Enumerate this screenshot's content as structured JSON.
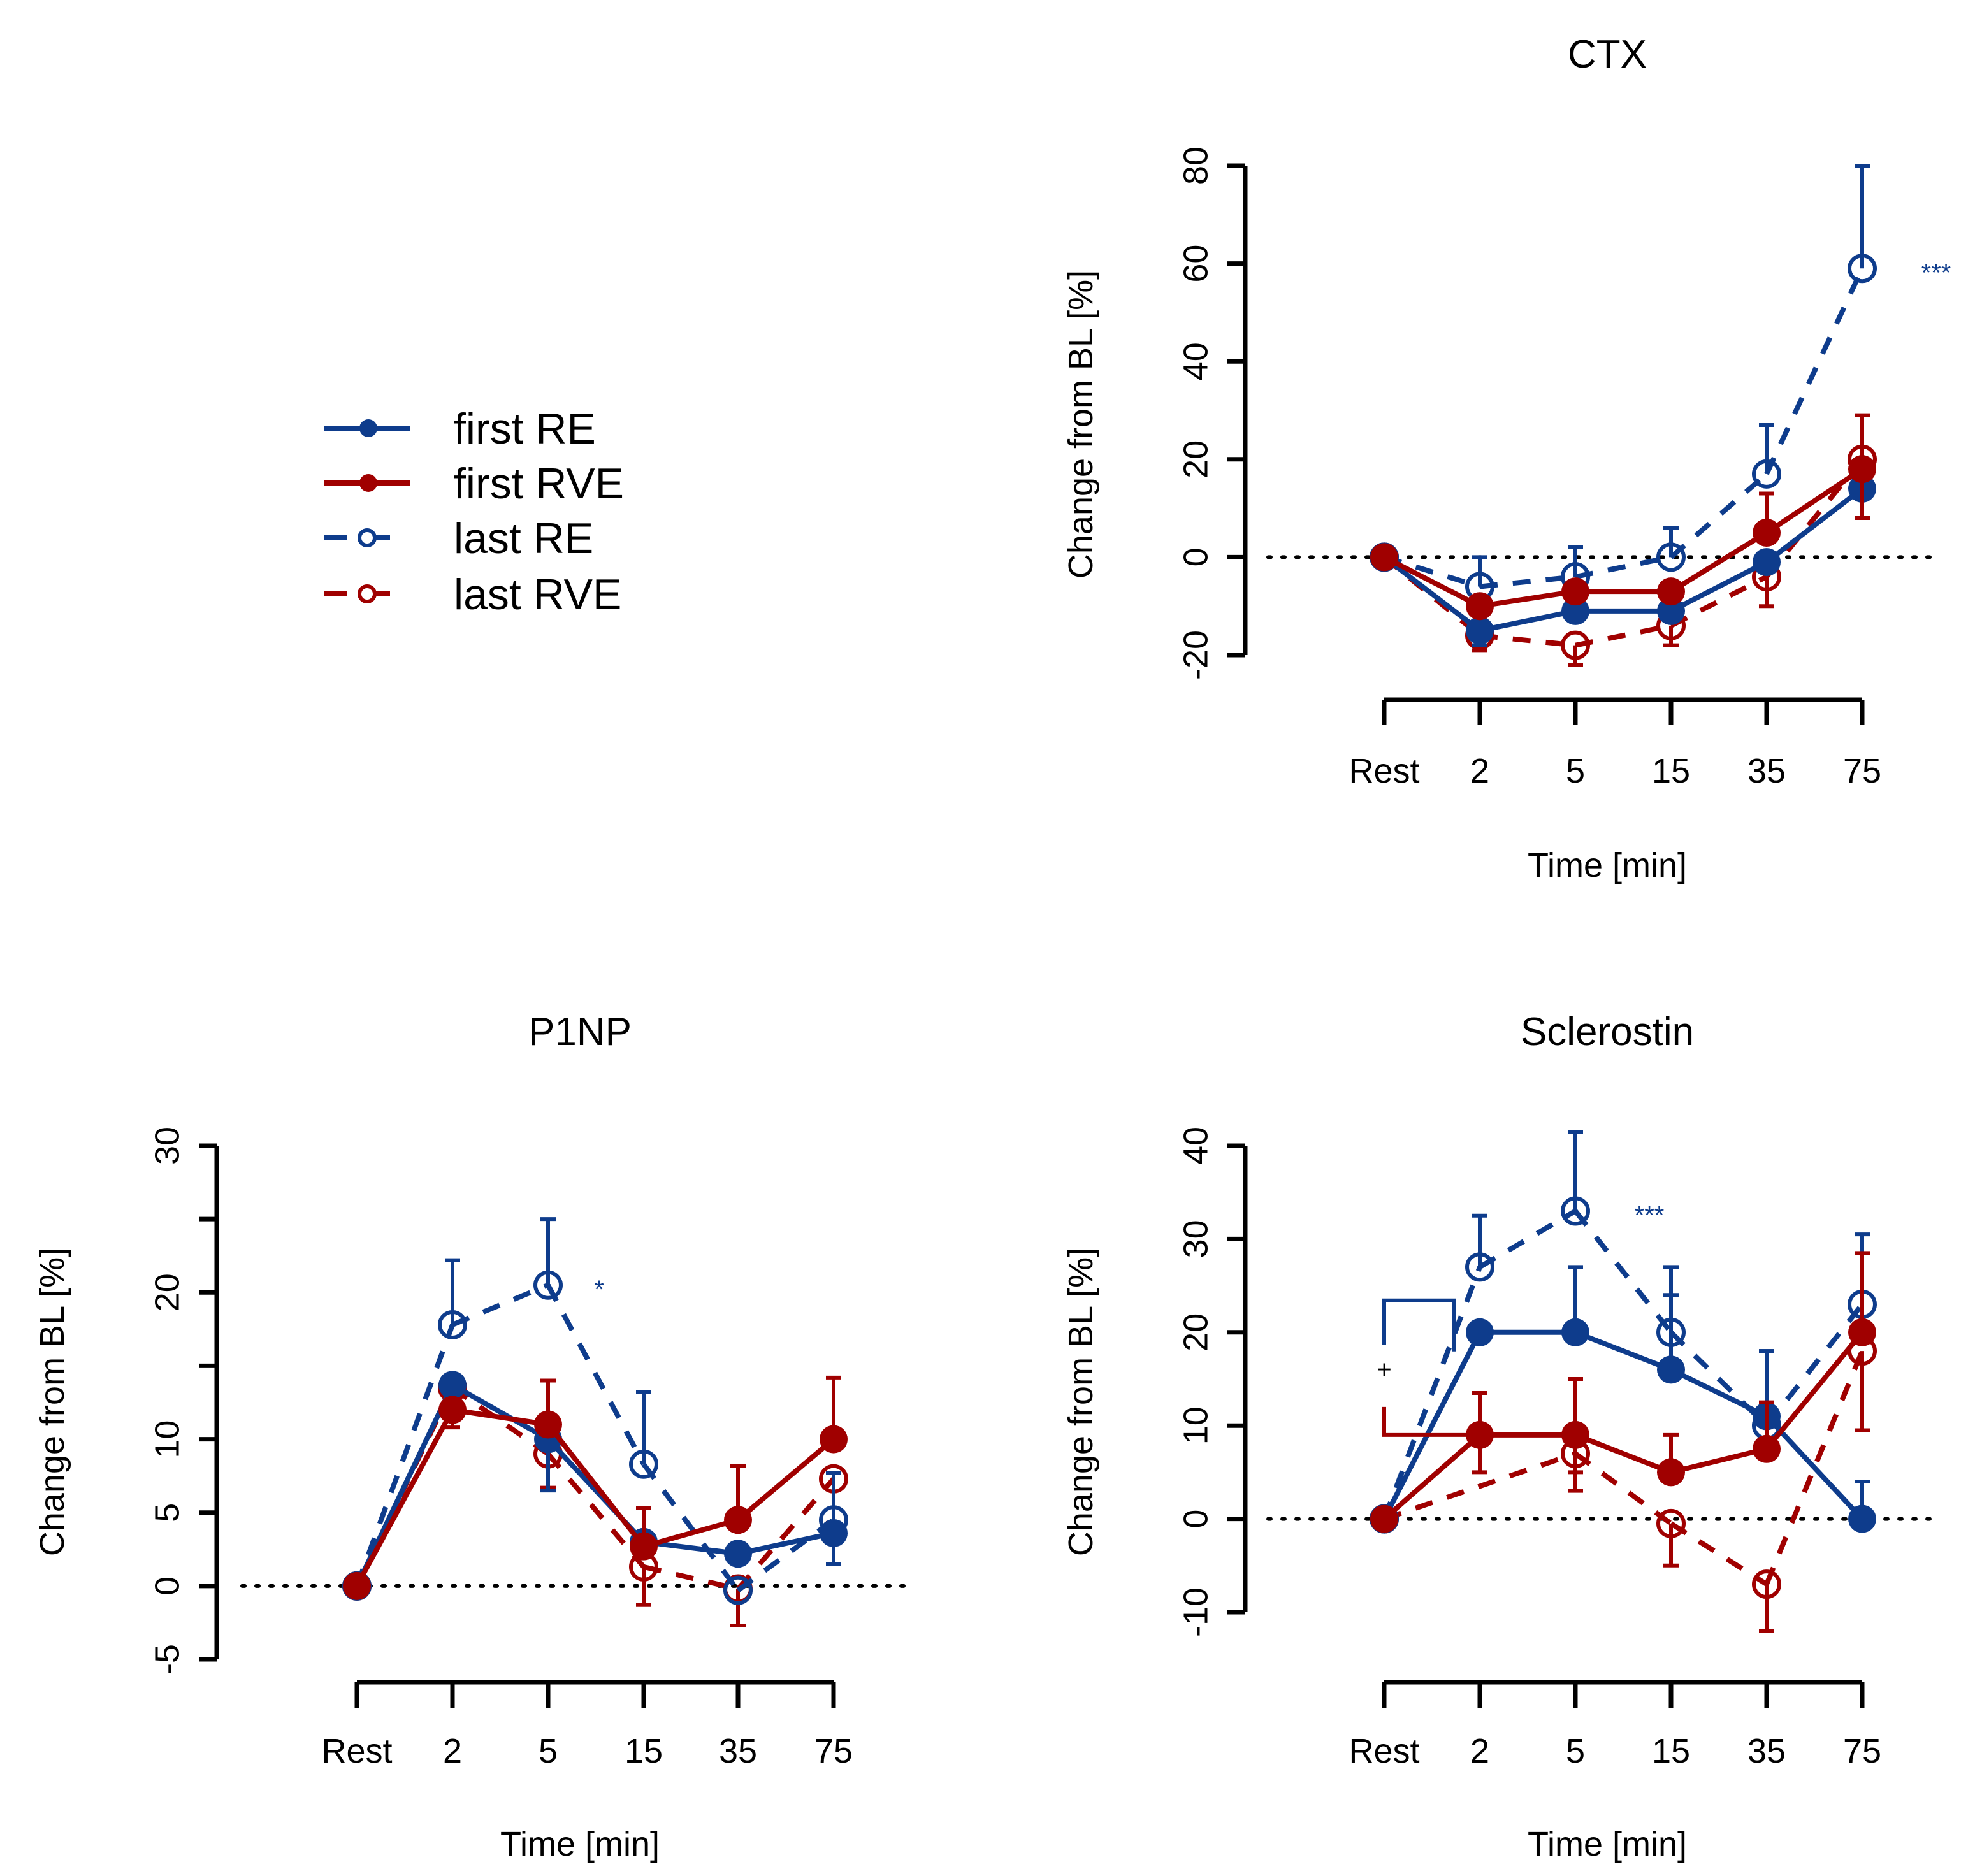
{
  "colors": {
    "RE": "#0e3c8c",
    "RVE": "#a00000",
    "axis": "#000000"
  },
  "legend": {
    "position": "top-left",
    "entries": [
      {
        "label": "first RE",
        "color": "#0e3c8c",
        "line": "solid",
        "marker": "filled-circle"
      },
      {
        "label": "first RVE",
        "color": "#a00000",
        "line": "solid",
        "marker": "filled-circle"
      },
      {
        "label": "last RE",
        "color": "#0e3c8c",
        "line": "dashed",
        "marker": "open-circle"
      },
      {
        "label": "last RVE",
        "color": "#a00000",
        "line": "dashed",
        "marker": "open-circle"
      }
    ]
  },
  "chart_data": [
    {
      "type": "line",
      "title": "CTX",
      "xlabel": "Time [min]",
      "ylabel": "Change from BL [%]",
      "categories": [
        "Rest",
        "2",
        "5",
        "15",
        "35",
        "75"
      ],
      "yticks": [
        -20,
        0,
        20,
        40,
        60,
        80
      ],
      "ytick_labels": [
        "-20",
        "0",
        "20",
        "40",
        "60",
        "80"
      ],
      "ylim": [
        -20,
        80
      ],
      "reference_line": 0,
      "series": [
        {
          "name": "first RE",
          "values": [
            0,
            -15,
            -11,
            -11,
            -1,
            14
          ],
          "err_low": [
            null,
            -18,
            null,
            null,
            null,
            8
          ],
          "err_high": [
            null,
            null,
            null,
            null,
            null,
            null
          ]
        },
        {
          "name": "first RVE",
          "values": [
            0,
            -10,
            -7,
            -7,
            5,
            18
          ],
          "err_low": [
            null,
            null,
            null,
            null,
            null,
            8
          ],
          "err_high": [
            null,
            null,
            null,
            null,
            13,
            29
          ]
        },
        {
          "name": "last RE",
          "values": [
            0,
            -6,
            -4,
            0,
            17,
            59
          ],
          "err_low": [
            null,
            null,
            null,
            null,
            null,
            null
          ],
          "err_high": [
            null,
            0,
            2,
            6,
            27,
            80
          ]
        },
        {
          "name": "last RVE",
          "values": [
            0,
            -16,
            -18,
            -14,
            -4,
            20
          ],
          "err_low": [
            null,
            -19,
            -22,
            -18,
            -10,
            null
          ],
          "err_high": [
            null,
            null,
            null,
            null,
            null,
            null
          ]
        }
      ],
      "annotations": [
        {
          "text": "***",
          "series": "last RE",
          "category": "75",
          "color": "#0e3c8c"
        }
      ]
    },
    {
      "type": "line",
      "title": "P1NP",
      "xlabel": "Time [min]",
      "ylabel": "Change from BL [%]",
      "categories": [
        "Rest",
        "2",
        "5",
        "15",
        "35",
        "75"
      ],
      "yticks": [
        -5,
        0,
        5,
        10,
        15,
        20,
        25,
        30
      ],
      "ytick_labels": [
        "-5",
        "0",
        "5",
        "10",
        "",
        "20",
        "",
        "30"
      ],
      "ylim": [
        -5,
        30
      ],
      "reference_line": 0,
      "series": [
        {
          "name": "first RE",
          "values": [
            0,
            13.7,
            10,
            3,
            2.2,
            3.6
          ],
          "err_low": [
            null,
            null,
            6.5,
            null,
            null,
            1.5
          ],
          "err_high": [
            null,
            null,
            null,
            null,
            null,
            null
          ]
        },
        {
          "name": "first RVE",
          "values": [
            0,
            12,
            11,
            2.7,
            4.5,
            10
          ],
          "err_low": [
            null,
            10.8,
            null,
            null,
            null,
            null
          ],
          "err_high": [
            null,
            null,
            14,
            5.3,
            8.2,
            14.2
          ]
        },
        {
          "name": "last RE",
          "values": [
            0,
            17.8,
            20.5,
            8.3,
            -0.3,
            4.5
          ],
          "err_low": [
            null,
            null,
            null,
            null,
            null,
            null
          ],
          "err_high": [
            null,
            22.2,
            25,
            13.2,
            null,
            7.7
          ]
        },
        {
          "name": "last RVE",
          "values": [
            0,
            13.5,
            9,
            1.3,
            -0.2,
            7.3
          ],
          "err_low": [
            null,
            null,
            6.7,
            -1.3,
            -2.7,
            4.3
          ],
          "err_high": [
            null,
            null,
            null,
            null,
            null,
            null
          ]
        }
      ],
      "annotations": [
        {
          "text": "*",
          "series": "last RE",
          "category": "5",
          "color": "#0e3c8c"
        }
      ]
    },
    {
      "type": "line",
      "title": "Sclerostin",
      "xlabel": "Time [min]",
      "ylabel": "Change from BL [%]",
      "categories": [
        "Rest",
        "2",
        "5",
        "15",
        "35",
        "75"
      ],
      "yticks": [
        -10,
        0,
        10,
        20,
        30,
        40
      ],
      "ytick_labels": [
        "-10",
        "0",
        "10",
        "20",
        "30",
        "40"
      ],
      "ylim": [
        -10,
        40
      ],
      "reference_line": 0,
      "series": [
        {
          "name": "first RE",
          "values": [
            0,
            20,
            20,
            16,
            11,
            0
          ],
          "err_low": [
            null,
            null,
            null,
            null,
            null,
            null
          ],
          "err_high": [
            null,
            null,
            27,
            24,
            18,
            4
          ]
        },
        {
          "name": "first RVE",
          "values": [
            0,
            9,
            9,
            5,
            7.5,
            20
          ],
          "err_low": [
            null,
            5,
            5,
            null,
            null,
            null
          ],
          "err_high": [
            null,
            13.5,
            15,
            9,
            12.5,
            28.5
          ]
        },
        {
          "name": "last RE",
          "values": [
            0,
            27,
            33,
            20,
            10,
            23
          ],
          "err_low": [
            null,
            null,
            null,
            null,
            null,
            null
          ],
          "err_high": [
            null,
            32.5,
            41.5,
            27,
            18,
            30.5
          ]
        },
        {
          "name": "last RVE",
          "values": [
            0,
            null,
            7,
            -0.5,
            -7,
            18
          ],
          "err_low": [
            null,
            null,
            3,
            -5,
            -12,
            9.5
          ],
          "err_high": [
            null,
            null,
            null,
            null,
            null,
            null
          ]
        }
      ],
      "annotations": [
        {
          "text": "***",
          "series": "last RE",
          "category": "5",
          "color": "#0e3c8c"
        },
        {
          "text": "+",
          "type": "bracket",
          "between": [
            "first RE",
            "first RVE"
          ],
          "category": "2",
          "color": "#000000"
        }
      ]
    }
  ]
}
